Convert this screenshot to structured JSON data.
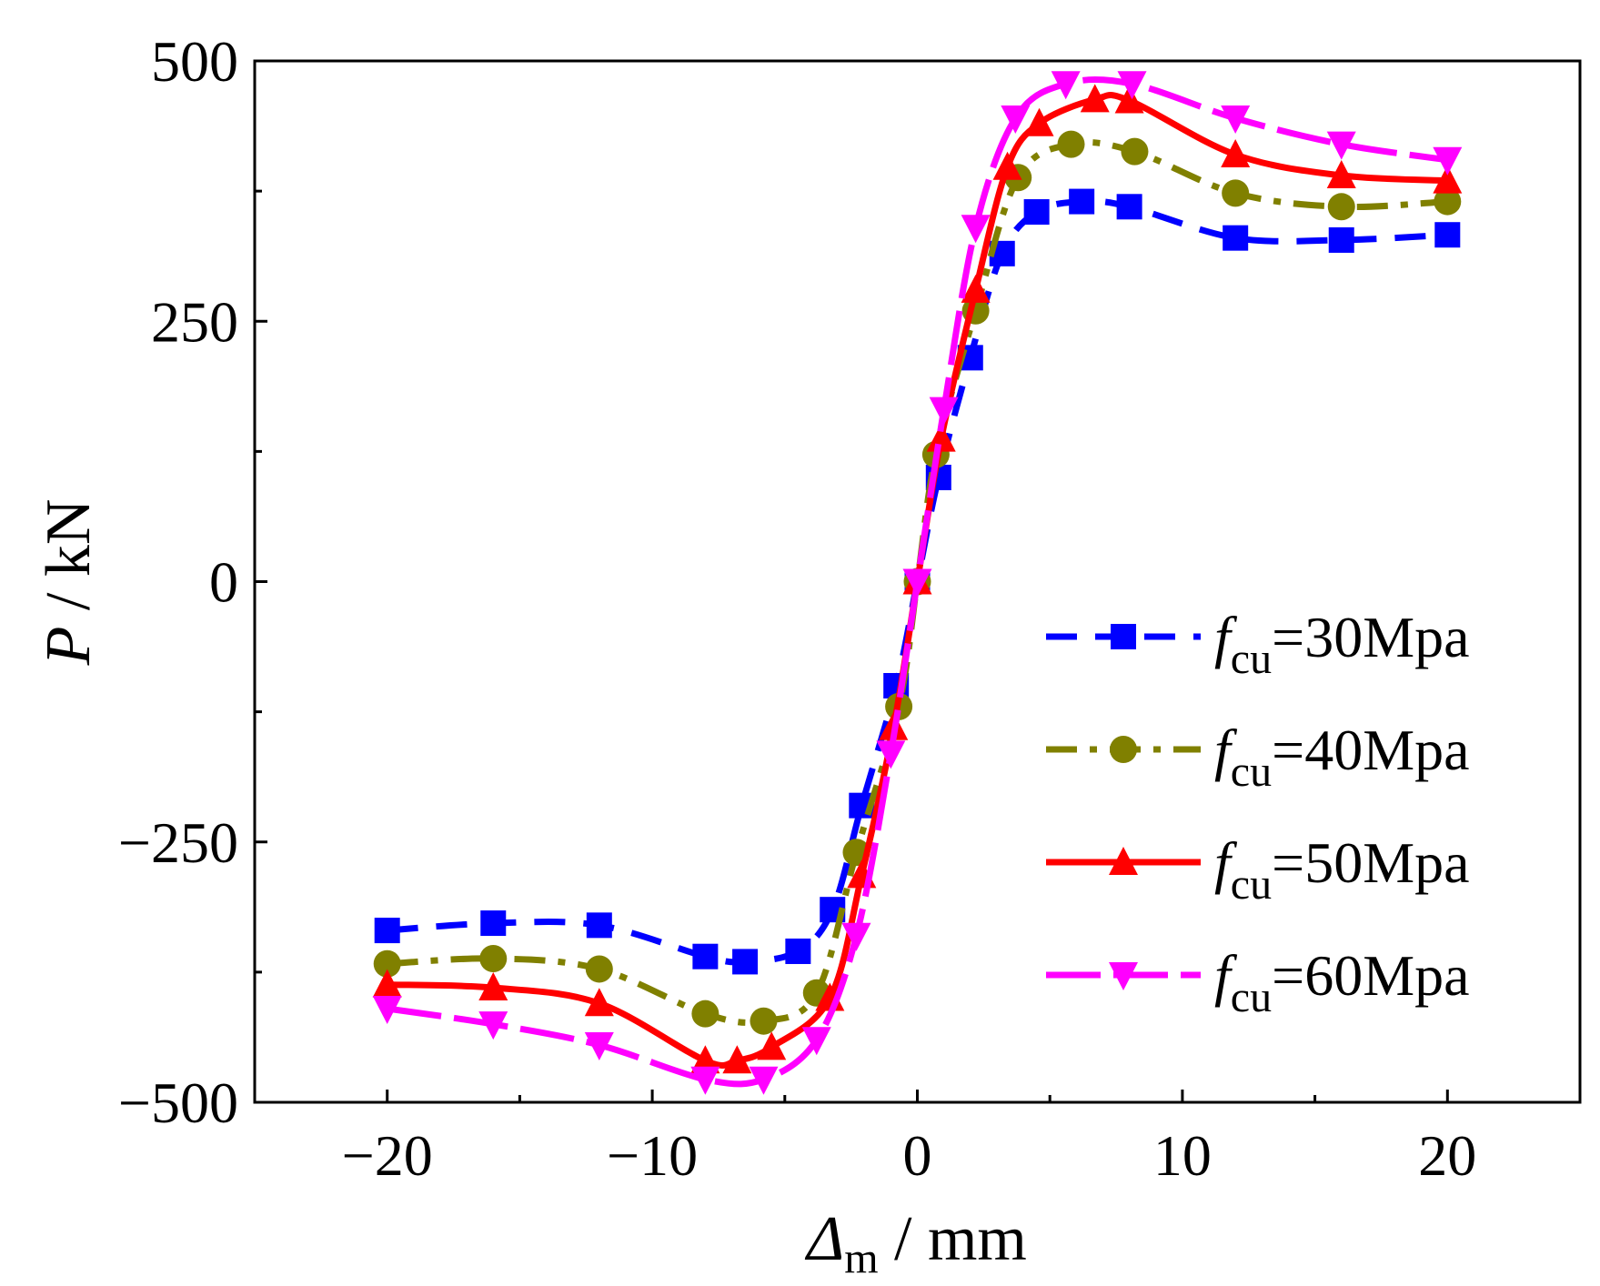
{
  "chart_data": {
    "type": "line",
    "xlabel": "Δm / mm",
    "ylabel": "P / kN",
    "xlim": [
      -25,
      25
    ],
    "ylim": [
      -500,
      500
    ],
    "x_ticks": [
      -20,
      -10,
      0,
      10,
      20
    ],
    "y_ticks": [
      -500,
      -250,
      0,
      250,
      500
    ],
    "x_tick_labels": [
      "−20",
      "−10",
      "0",
      "10",
      "20"
    ],
    "y_tick_labels": [
      "−500",
      "−250",
      "0",
      "250",
      "500"
    ],
    "x_label_parts": {
      "main": "Δ",
      "sub": "m",
      "rest": " / mm"
    },
    "y_label_parts": {
      "main": "P",
      "rest": " / kN"
    },
    "legend_position": "right",
    "series": [
      {
        "name": "fcu=30Mpa",
        "label_main": "f",
        "label_sub": "cu",
        "label_rest": "=30Mpa",
        "color": "#0000FF",
        "marker": "square",
        "line_style": "dash",
        "points": [
          [
            -20,
            -335
          ],
          [
            -16,
            -328
          ],
          [
            -12,
            -330
          ],
          [
            -8,
            -360
          ],
          [
            -6.5,
            -365
          ],
          [
            -4.5,
            -355
          ],
          [
            -3.2,
            -315
          ],
          [
            -2.1,
            -215
          ],
          [
            -0.8,
            -100
          ],
          [
            0,
            0
          ],
          [
            0.8,
            100
          ],
          [
            2,
            215
          ],
          [
            3.2,
            315
          ],
          [
            4.5,
            355
          ],
          [
            6.2,
            365
          ],
          [
            8,
            360
          ],
          [
            12,
            330
          ],
          [
            16,
            328
          ],
          [
            20,
            333
          ]
        ]
      },
      {
        "name": "fcu=40Mpa",
        "label_main": "f",
        "label_sub": "cu",
        "label_rest": "=40Mpa",
        "color": "#808000",
        "marker": "circle",
        "line_style": "dashdot",
        "points": [
          [
            -20,
            -367
          ],
          [
            -16,
            -362
          ],
          [
            -12,
            -372
          ],
          [
            -8,
            -415
          ],
          [
            -5.8,
            -422
          ],
          [
            -3.8,
            -395
          ],
          [
            -2.3,
            -260
          ],
          [
            -0.7,
            -120
          ],
          [
            0,
            0
          ],
          [
            0.7,
            122
          ],
          [
            2.2,
            260
          ],
          [
            3.8,
            388
          ],
          [
            5.8,
            420
          ],
          [
            8.2,
            413
          ],
          [
            12,
            373
          ],
          [
            16,
            360
          ],
          [
            20,
            365
          ]
        ]
      },
      {
        "name": "fcu=50Mpa",
        "label_main": "f",
        "label_sub": "cu",
        "label_rest": "=50Mpa",
        "color": "#FF0000",
        "marker": "triangle-up",
        "line_style": "solid",
        "points": [
          [
            -20,
            -387
          ],
          [
            -16,
            -390
          ],
          [
            -12,
            -405
          ],
          [
            -8,
            -460
          ],
          [
            -6.8,
            -460
          ],
          [
            -5.5,
            -447
          ],
          [
            -3.3,
            -400
          ],
          [
            -2.1,
            -282
          ],
          [
            -0.9,
            -140
          ],
          [
            0,
            0
          ],
          [
            0.9,
            137
          ],
          [
            2.2,
            280
          ],
          [
            3.4,
            398
          ],
          [
            4.6,
            440
          ],
          [
            6.7,
            463
          ],
          [
            8,
            462
          ],
          [
            12,
            410
          ],
          [
            16,
            390
          ],
          [
            20,
            385
          ]
        ]
      },
      {
        "name": "fcu=60Mpa",
        "label_main": "f",
        "label_sub": "cu",
        "label_rest": "=60Mpa",
        "color": "#FF00FF",
        "marker": "triangle-down",
        "line_style": "longdash",
        "points": [
          [
            -20,
            -410
          ],
          [
            -16,
            -425
          ],
          [
            -12,
            -445
          ],
          [
            -8,
            -478
          ],
          [
            -5.8,
            -478
          ],
          [
            -3.8,
            -440
          ],
          [
            -2.3,
            -340
          ],
          [
            -1,
            -165
          ],
          [
            0,
            0
          ],
          [
            1,
            165
          ],
          [
            2.2,
            340
          ],
          [
            3.7,
            445
          ],
          [
            5.6,
            478
          ],
          [
            8.1,
            478
          ],
          [
            12,
            445
          ],
          [
            16,
            420
          ],
          [
            20,
            405
          ]
        ]
      }
    ]
  }
}
